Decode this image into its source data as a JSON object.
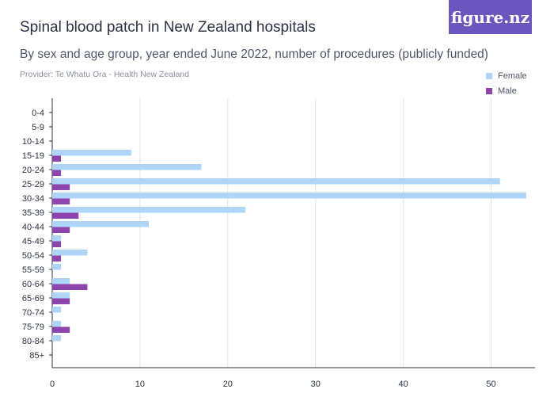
{
  "header": {
    "title": "Spinal blood patch in New Zealand hospitals",
    "subtitle": "By sex and age group, year ended June 2022, number of procedures (publicly funded)",
    "provider": "Provider: Te Whatu Ora - Health New Zealand",
    "brand": "figure.nz"
  },
  "colors": {
    "female": "#aed4f8",
    "male": "#8e44ad",
    "grid": "#e3e3e8",
    "axis": "#2d3142"
  },
  "chart_data": {
    "type": "bar",
    "orientation": "horizontal",
    "categories": [
      "0-4",
      "5-9",
      "10-14",
      "15-19",
      "20-24",
      "25-29",
      "30-34",
      "35-39",
      "40-44",
      "45-49",
      "50-54",
      "55-59",
      "60-64",
      "65-69",
      "70-74",
      "75-79",
      "80-84",
      "85+"
    ],
    "series": [
      {
        "name": "Female",
        "values": [
          0,
          0,
          0,
          9,
          17,
          51,
          54,
          22,
          11,
          1,
          4,
          1,
          2,
          2,
          1,
          1,
          1,
          0
        ]
      },
      {
        "name": "Male",
        "values": [
          0,
          0,
          0,
          1,
          1,
          2,
          2,
          3,
          2,
          1,
          1,
          0,
          4,
          2,
          0,
          2,
          0,
          0
        ]
      }
    ],
    "xlim": [
      0,
      55
    ],
    "xticks": [
      0,
      10,
      20,
      30,
      40,
      50
    ],
    "grid": true,
    "legend": "top-right"
  }
}
